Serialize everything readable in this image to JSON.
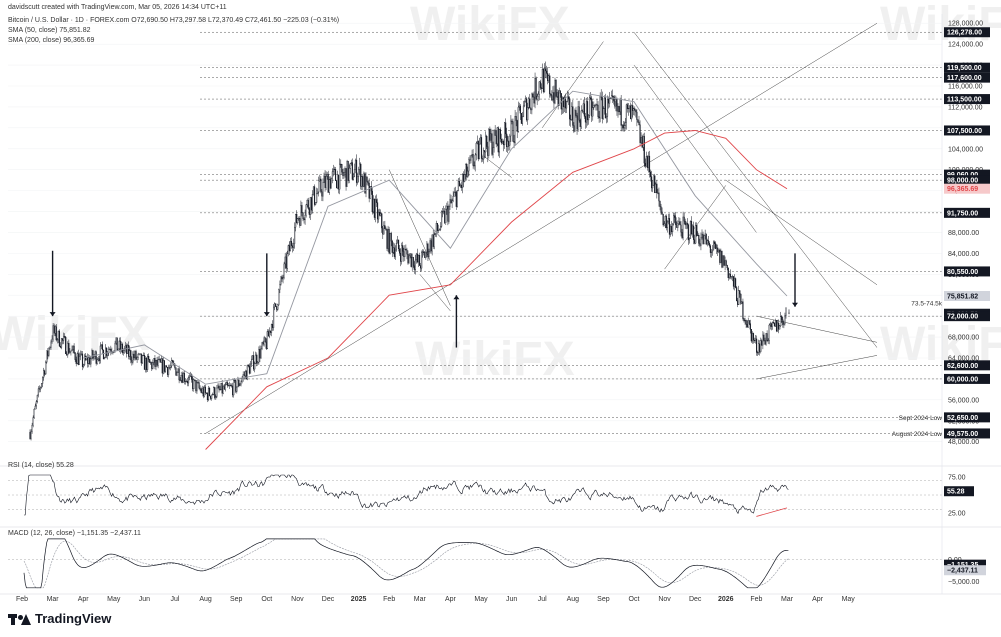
{
  "header": {
    "author_line": "davidscutt created with TradingView.com, Mar 05, 2026 14:34 UTC+11",
    "symbol_line": "Bitcoin / U.S. Dollar · 1D · FOREX.com  O72,690.50  H73,297.58  L72,370.49  C72,461.50  −225.03 (−0.31%)",
    "sma50_line": "SMA (50, close)  75,851.82",
    "sma200_line": "SMA (200, close)  96,365.69"
  },
  "branding": {
    "name": "TradingView",
    "watermark_text": "WikiFX"
  },
  "colors": {
    "up_candle": "#ffffff",
    "down_candle": "#131722",
    "candle_border": "#131722",
    "sma50": "#9598a1",
    "sma200": "#e0464a",
    "axis_text": "#333333",
    "label_bg": "#131722",
    "label_text": "#ffffff",
    "grid": "#e0e3eb",
    "watermark": "#e5e5e5"
  },
  "chart_data": [
    {
      "type": "candlestick",
      "title": "Bitcoin / U.S. Dollar · 1D · FOREX.com",
      "timeframe": "1D",
      "x_tick_labels": [
        "Feb",
        "Mar",
        "Apr",
        "May",
        "Jun",
        "Jul",
        "Aug",
        "Sep",
        "Oct",
        "Nov",
        "Dec",
        "2025",
        "Feb",
        "Mar",
        "Apr",
        "May",
        "Jun",
        "Jul",
        "Aug",
        "Sep",
        "Oct",
        "Nov",
        "Dec",
        "2026",
        "Feb",
        "Mar",
        "Apr",
        "May"
      ],
      "y_tick_labels": [
        "128,000.00",
        "124,000.00",
        "120,000.00",
        "116,000.00",
        "112,000.00",
        "108,000.00",
        "104,000.00",
        "100,000.00",
        "96,000.00",
        "92,000.00",
        "88,000.00",
        "84,000.00",
        "80,000.00",
        "76,000.00",
        "72,000.00",
        "68,000.00",
        "64,000.00",
        "60,000.00",
        "56,000.00",
        "52,000.00",
        "48,000.00"
      ],
      "y_ticks": [
        128000,
        124000,
        120000,
        116000,
        112000,
        108000,
        104000,
        100000,
        96000,
        92000,
        88000,
        84000,
        80000,
        76000,
        72000,
        68000,
        64000,
        60000,
        56000,
        52000,
        48000
      ],
      "ylim": [
        44500,
        129000
      ],
      "approx_close_path": [
        {
          "month": "Feb 2024",
          "value": 43000
        },
        {
          "month": "Mar 2024",
          "value": 69000
        },
        {
          "month": "Apr 2024",
          "value": 63000
        },
        {
          "month": "May 2024",
          "value": 66500
        },
        {
          "month": "Jun 2024",
          "value": 63000
        },
        {
          "month": "Jul 2024",
          "value": 62000
        },
        {
          "month": "Aug 2024",
          "value": 57000
        },
        {
          "month": "Sep 2024",
          "value": 58500
        },
        {
          "month": "Oct 2024",
          "value": 67000
        },
        {
          "month": "Nov 2024",
          "value": 91000
        },
        {
          "month": "Dec 2024",
          "value": 98000
        },
        {
          "month": "Jan 2025",
          "value": 100000
        },
        {
          "month": "Feb 2025",
          "value": 86000
        },
        {
          "month": "Mar 2025",
          "value": 82000
        },
        {
          "month": "Apr 2025",
          "value": 93000
        },
        {
          "month": "May 2025",
          "value": 104500
        },
        {
          "month": "Jun 2025",
          "value": 107000
        },
        {
          "month": "Jul 2025",
          "value": 117500
        },
        {
          "month": "Aug 2025",
          "value": 110000
        },
        {
          "month": "Sep 2025",
          "value": 112000
        },
        {
          "month": "Oct 2025",
          "value": 110000
        },
        {
          "month": "Nov 2025",
          "value": 90000
        },
        {
          "month": "Dec 2025",
          "value": 88000
        },
        {
          "month": "Jan 2026",
          "value": 82000
        },
        {
          "month": "Feb 2026",
          "value": 66000
        },
        {
          "month": "Mar 2026",
          "value": 72461.5
        }
      ],
      "sma50_path": [
        {
          "month": "Apr 2024",
          "value": 64000
        },
        {
          "month": "Jun 2024",
          "value": 66500
        },
        {
          "month": "Aug 2024",
          "value": 59000
        },
        {
          "month": "Oct 2024",
          "value": 61000
        },
        {
          "month": "Dec 2024",
          "value": 93000
        },
        {
          "month": "Feb 2025",
          "value": 98000
        },
        {
          "month": "Apr 2025",
          "value": 85000
        },
        {
          "month": "Jun 2025",
          "value": 104000
        },
        {
          "month": "Aug 2025",
          "value": 115000
        },
        {
          "month": "Oct 2025",
          "value": 113000
        },
        {
          "month": "Dec 2025",
          "value": 95000
        },
        {
          "month": "Feb 2026",
          "value": 82000
        },
        {
          "month": "Mar 2026",
          "value": 75851.82
        }
      ],
      "sma200_path": [
        {
          "month": "Aug 2024",
          "value": 46500
        },
        {
          "month": "Oct 2024",
          "value": 58500
        },
        {
          "month": "Dec 2024",
          "value": 64000
        },
        {
          "month": "Feb 2025",
          "value": 76000
        },
        {
          "month": "Apr 2025",
          "value": 78000
        },
        {
          "month": "Jun 2025",
          "value": 90000
        },
        {
          "month": "Aug 2025",
          "value": 99500
        },
        {
          "month": "Oct 2025",
          "value": 104000
        },
        {
          "month": "Nov 2025",
          "value": 107000
        },
        {
          "month": "Dec 2025",
          "value": 107500
        },
        {
          "month": "Jan 2026",
          "value": 106000
        },
        {
          "month": "Feb 2026",
          "value": 100000
        },
        {
          "month": "Mar 2026",
          "value": 96365.69
        }
      ],
      "price_labels": [
        {
          "value": 126278.0,
          "text": "126,278.00",
          "style": "dark"
        },
        {
          "value": 119500.0,
          "text": "119,500.00",
          "style": "dark"
        },
        {
          "value": 117600.0,
          "text": "117,600.00",
          "style": "dark"
        },
        {
          "value": 113500.0,
          "text": "113,500.00",
          "style": "dark"
        },
        {
          "value": 107500.0,
          "text": "107,500.00",
          "style": "dark"
        },
        {
          "value": 99060.0,
          "text": "99,060.00",
          "style": "dark"
        },
        {
          "value": 98000.0,
          "text": "98,000.00",
          "style": "dark"
        },
        {
          "value": 96365.69,
          "text": "96,365.69",
          "style": "red"
        },
        {
          "value": 91750.0,
          "text": "91,750.00",
          "style": "dark"
        },
        {
          "value": 80550.0,
          "text": "80,550.00",
          "style": "dark"
        },
        {
          "value": 75851.82,
          "text": "75,851.82",
          "style": "grey"
        },
        {
          "value": 72461.5,
          "text": "72,461.50",
          "style": "dark"
        },
        {
          "value": 72000.0,
          "text": "72,000.00",
          "style": "dark"
        },
        {
          "value": 62600.0,
          "text": "62,600.00",
          "style": "dark"
        },
        {
          "value": 60000.0,
          "text": "60,000.00",
          "style": "dark"
        },
        {
          "value": 52650.0,
          "text": "52,650.00",
          "style": "dark"
        },
        {
          "value": 49575.0,
          "text": "49,575.00",
          "style": "dark"
        }
      ],
      "horizontal_levels": [
        126278,
        119500,
        117600,
        113500,
        107500,
        99060,
        98000,
        91750,
        80550,
        72000,
        62600,
        60000,
        52650,
        49575
      ],
      "annotations": [
        {
          "text": "73.5-74.5k",
          "value": 74500
        },
        {
          "text": "Sept 2024 Low",
          "value": 52650
        },
        {
          "text": "August 2024 Low",
          "value": 49575
        }
      ],
      "arrows": [
        {
          "month": "Mar 2024",
          "direction": "down"
        },
        {
          "month": "Oct 2024",
          "direction": "down"
        },
        {
          "month": "Apr 2025",
          "direction": "up"
        },
        {
          "month": "Mar 2026",
          "direction": "down"
        }
      ]
    },
    {
      "type": "line",
      "title": "RSI (14, close)",
      "series": [
        {
          "name": "RSI (14, close)",
          "last": 55.28
        }
      ],
      "y_tick_labels": [
        "75.00",
        "55.28",
        "25.00"
      ],
      "levels": [
        70,
        50,
        30
      ],
      "ylim": [
        15,
        85
      ]
    },
    {
      "type": "line",
      "title": "MACD (12, 26, close)",
      "series": [
        {
          "name": "MACD",
          "last": -1151.35
        },
        {
          "name": "Signal",
          "last": -2437.11
        }
      ],
      "y_tick_labels": [
        "0.00",
        "−1,151.35",
        "−2,437.11",
        "−5,000.00"
      ],
      "ylim": [
        -7000,
        5000
      ]
    }
  ],
  "header_values": {
    "rsi_line": "RSI (14, close)  55.28",
    "macd_line": "MACD (12, 26, close)  −1,151.35  −2,437.11"
  }
}
